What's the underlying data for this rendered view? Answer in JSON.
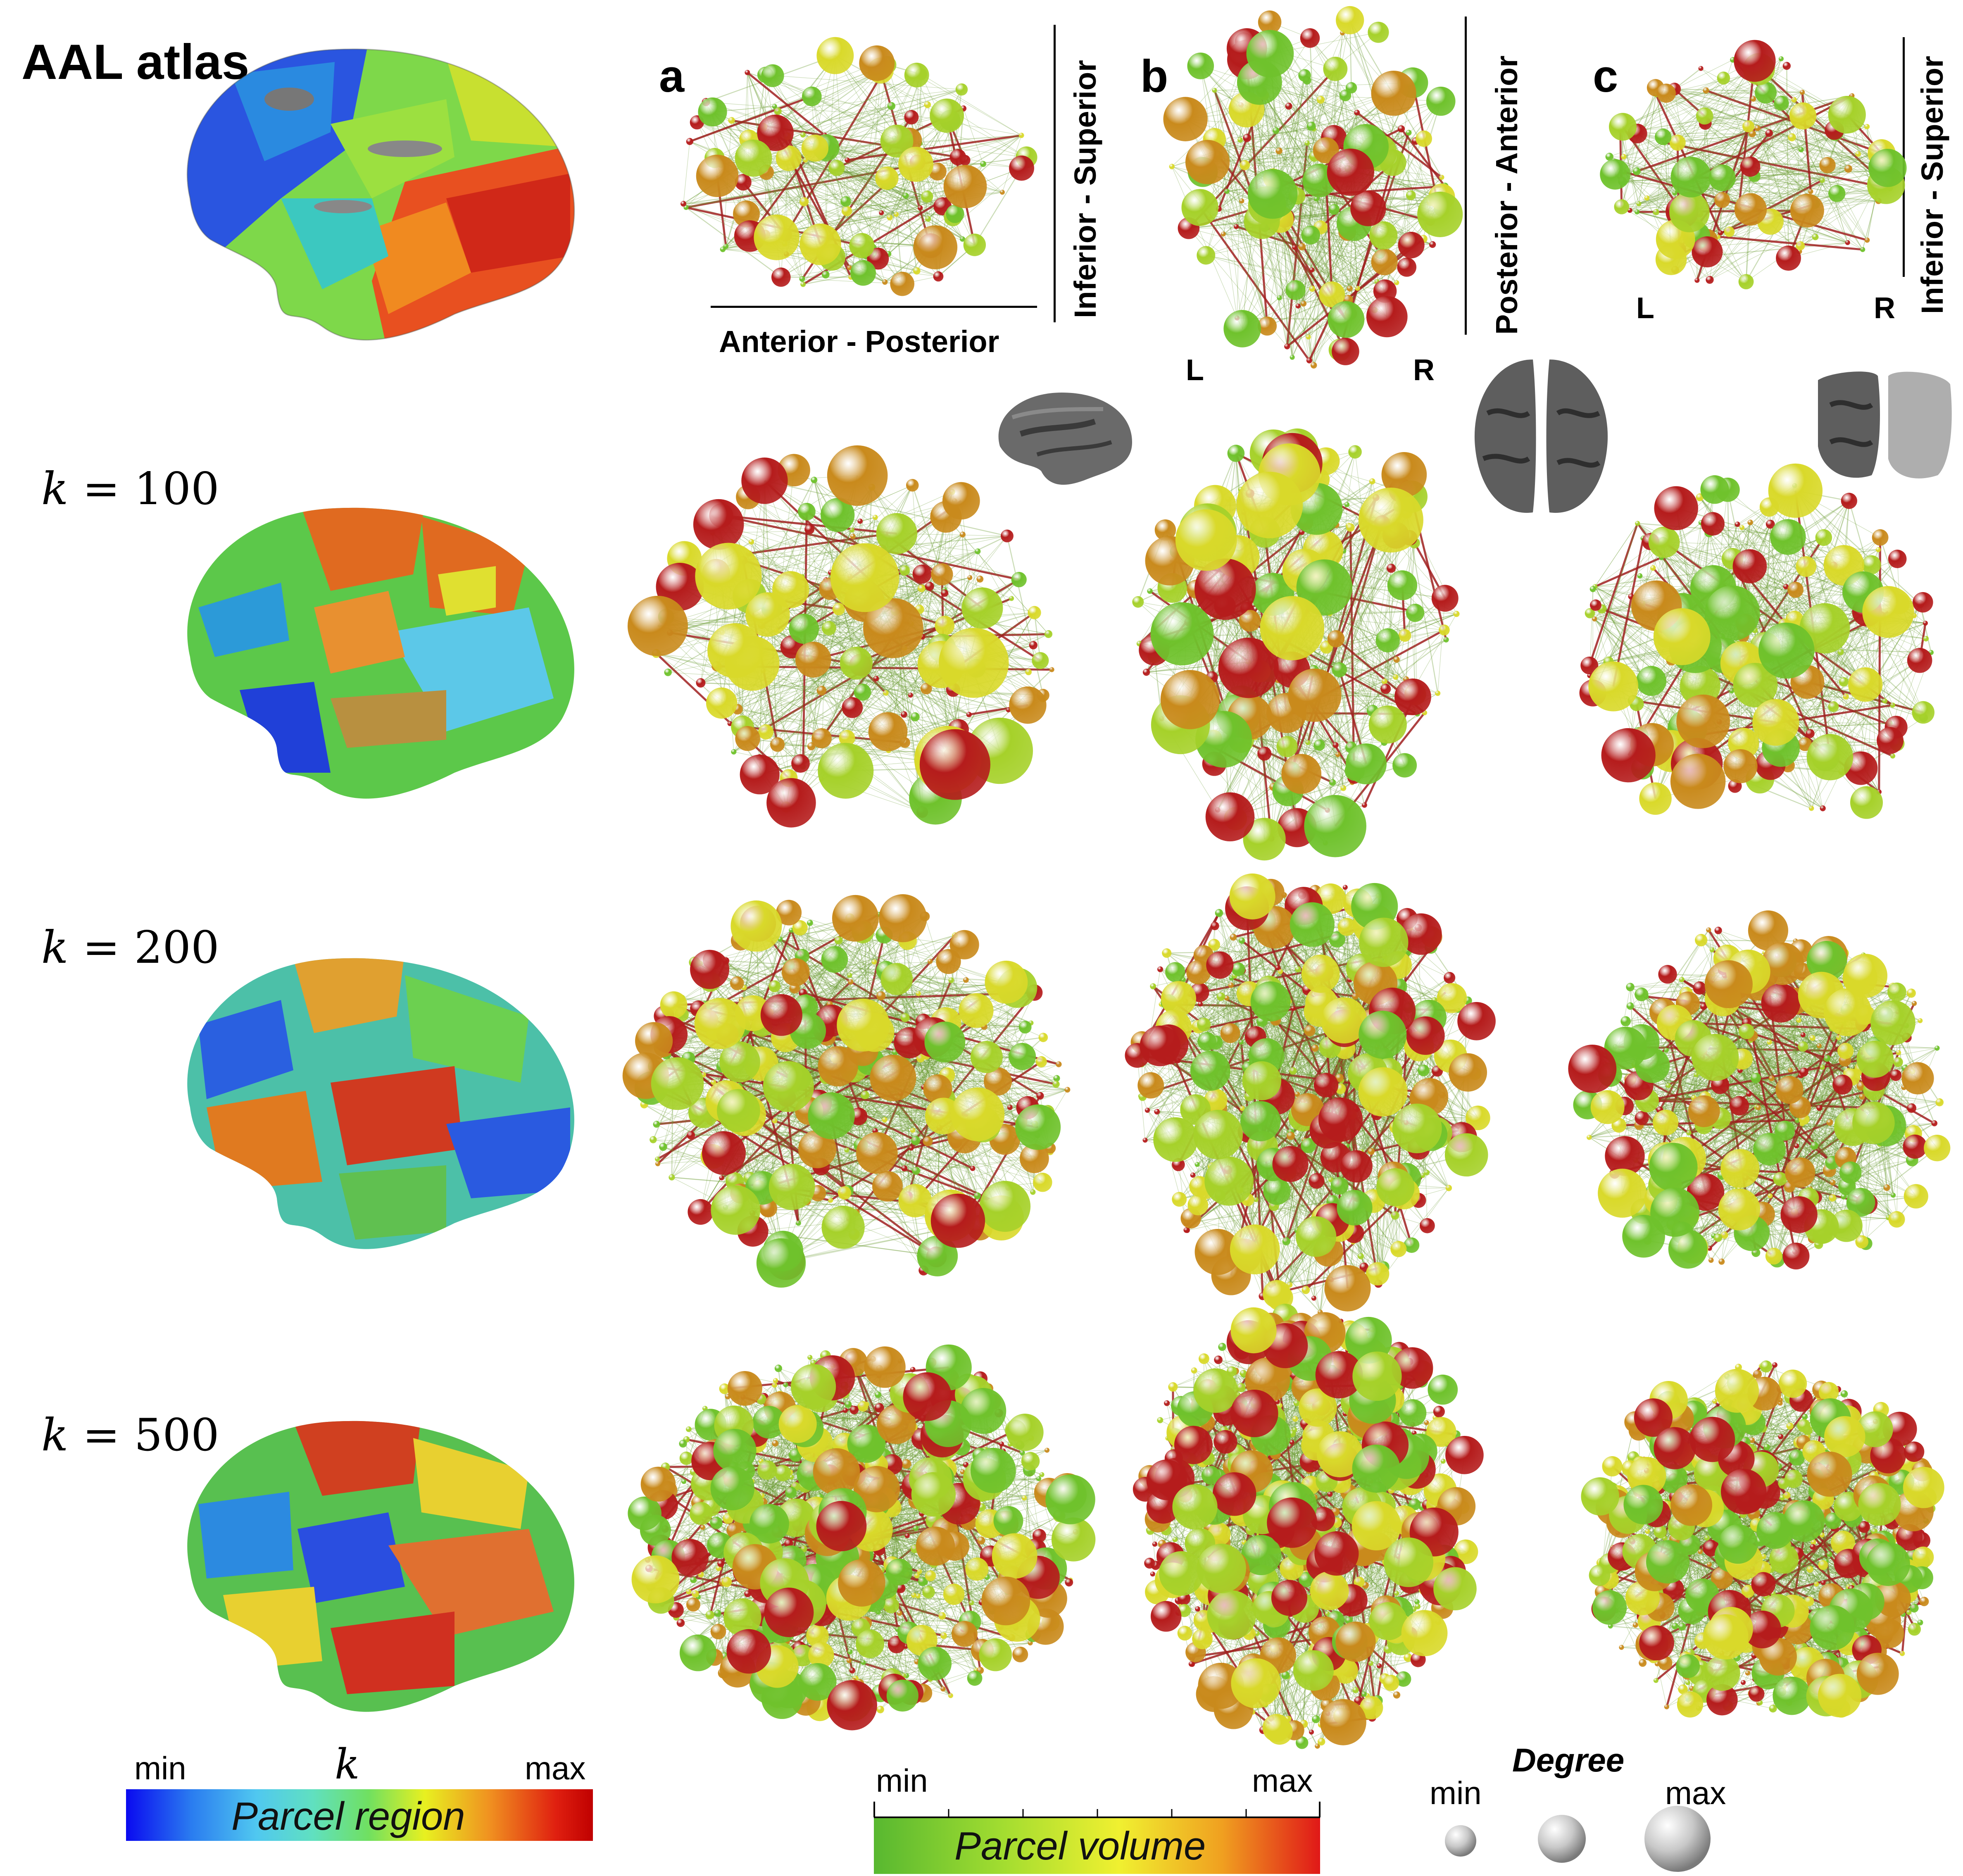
{
  "rows": [
    {
      "label_prefix": "",
      "label_value": "AAL atlas",
      "style": "bold"
    },
    {
      "label_prefix": "k",
      "label_value": "= 100",
      "style": "math"
    },
    {
      "label_prefix": "k",
      "label_value": "= 200",
      "style": "math"
    },
    {
      "label_prefix": "k",
      "label_value": "= 500",
      "style": "math"
    }
  ],
  "panels": [
    {
      "letter": "a",
      "axis_h": "Anterior - Posterior",
      "axis_v": "Inferior - Superior",
      "left": "",
      "right": ""
    },
    {
      "letter": "b",
      "axis_h": "",
      "axis_v": "Posterior - Anterior",
      "left": "L",
      "right": "R"
    },
    {
      "letter": "c",
      "axis_h": "",
      "axis_v": "Inferior - Superior",
      "left": "L",
      "right": "R"
    }
  ],
  "legend": {
    "parcel_region": {
      "min": "min",
      "max": "max",
      "symbol": "k",
      "title": "Parcel region"
    },
    "parcel_volume": {
      "min": "min",
      "max": "max",
      "title": "Parcel volume"
    },
    "degree": {
      "title": "Degree",
      "min": "min",
      "max": "max"
    }
  },
  "colors": {
    "region_scale": [
      "#1010e8",
      "#28a0f0",
      "#40e0e0",
      "#50d050",
      "#e8f030",
      "#f08020",
      "#d01010"
    ],
    "volume_scale": [
      "#60c030",
      "#a8e030",
      "#f0f030",
      "#f0a020",
      "#e02020"
    ],
    "node_palette": [
      "#6fc22c",
      "#a6d12a",
      "#d9d92a",
      "#c98a1c",
      "#b51c1c"
    ]
  }
}
